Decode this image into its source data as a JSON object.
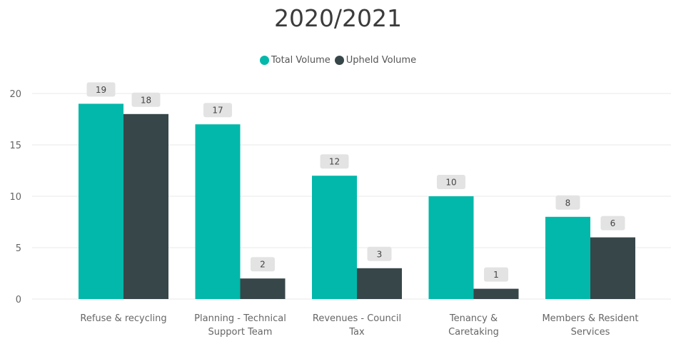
{
  "chart_data": {
    "type": "bar",
    "title": "2020/2021",
    "xlabel": "",
    "ylabel": "",
    "categories": [
      [
        "Refuse & recycling"
      ],
      [
        "Planning - Technical",
        "Support Team"
      ],
      [
        "Revenues - Council",
        "Tax"
      ],
      [
        "Tenancy &",
        "Caretaking"
      ],
      [
        "Members & Resident",
        "Services"
      ]
    ],
    "series": [
      {
        "name": "Total Volume",
        "color": "#01b8aa",
        "values": [
          19,
          17,
          12,
          10,
          8
        ]
      },
      {
        "name": "Upheld Volume",
        "color": "#374649",
        "values": [
          18,
          2,
          3,
          1,
          6
        ]
      }
    ],
    "ylim": [
      0,
      20
    ],
    "yticks": [
      0,
      5,
      10,
      15,
      20
    ],
    "grid": true,
    "legend_position": "top-center",
    "data_labels": true
  }
}
